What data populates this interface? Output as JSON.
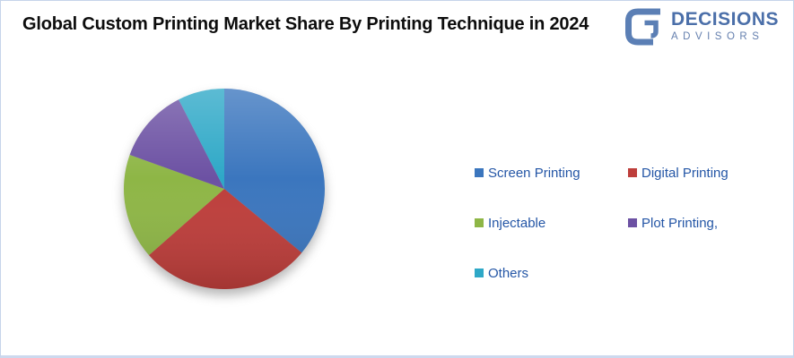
{
  "header": {
    "title": "Global Custom Printing Market Share By Printing Technique in 2024",
    "brand": {
      "name": "DECISIONS",
      "subtitle": "ADVISORS",
      "accent_color": "#5b7fb5"
    }
  },
  "chart_data": {
    "type": "pie",
    "title": "Global Custom Printing Market Share By Printing Technique in 2024",
    "categories": [
      "Screen Printing",
      "Digital Printing",
      "Injectable",
      "Plot Printing,",
      "Others"
    ],
    "values": [
      36,
      27.5,
      17,
      12,
      7.5
    ],
    "colors": [
      "#3b76be",
      "#be3e3b",
      "#8eb646",
      "#6c51a3",
      "#2ea8c7"
    ],
    "legend_position": "right",
    "legend_text_color": "#2456a6",
    "start_angle_deg": 0,
    "direction": "clockwise",
    "data_labels": false
  }
}
